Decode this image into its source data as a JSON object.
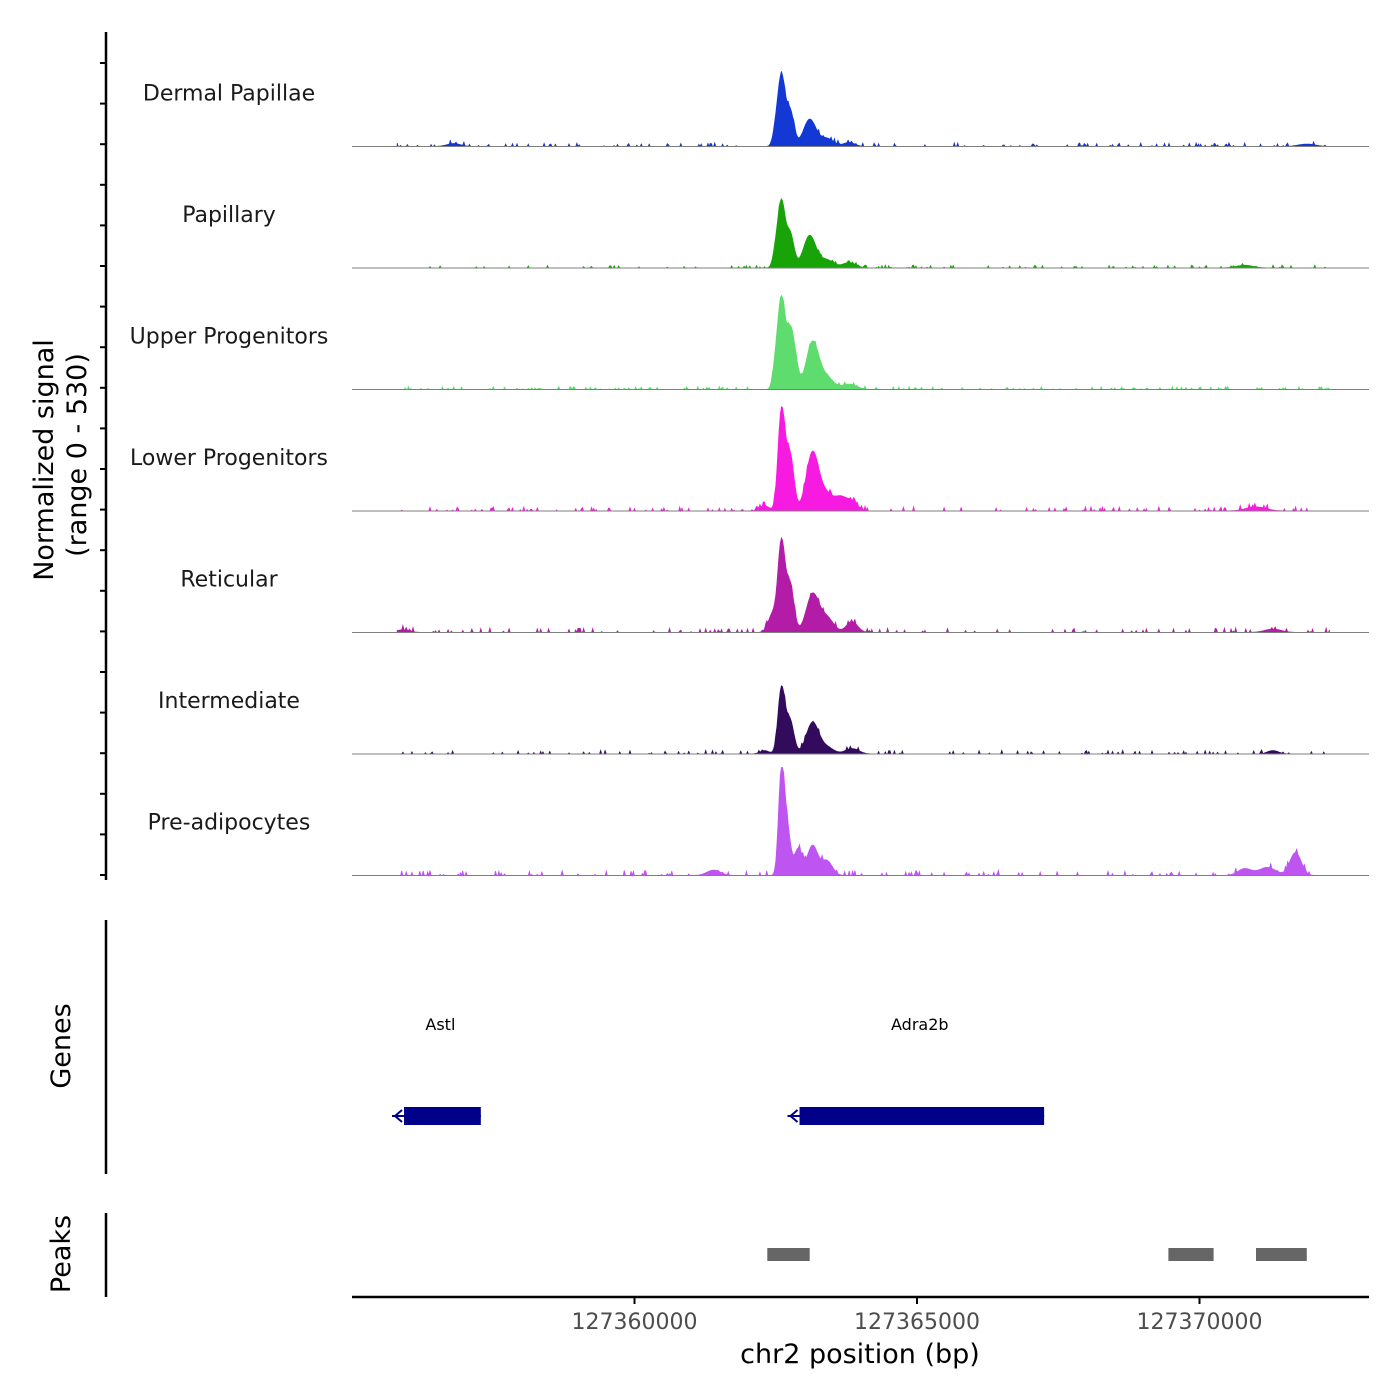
{
  "chart_data": {
    "type": "area",
    "title": "",
    "ylabel_line1": "Normalized signal",
    "ylabel_line2": "(range 0 - 530)",
    "xlabel": "chr2 position (bp)",
    "xlim": [
      127355000,
      127373000
    ],
    "ylim": [
      0,
      530
    ],
    "xticks": [
      {
        "value": 127360000,
        "label": "127360000"
      },
      {
        "value": 127365000,
        "label": "127365000"
      },
      {
        "value": 127370000,
        "label": "127370000"
      }
    ],
    "signal_range": [
      127355800,
      127372300
    ],
    "tracks": [
      {
        "name": "Dermal Papillae",
        "color": "#1338D4",
        "peaks": [
          [
            127362600,
            500,
            60
          ],
          [
            127362750,
            270,
            70
          ],
          [
            127363100,
            200,
            110
          ],
          [
            127362500,
            120,
            50
          ],
          [
            127363400,
            60,
            120
          ],
          [
            127363800,
            30,
            100
          ],
          [
            127356800,
            22,
            120
          ],
          [
            127371900,
            18,
            150
          ]
        ],
        "noise": 10
      },
      {
        "name": "Papillary",
        "color": "#18A308",
        "peaks": [
          [
            127362600,
            470,
            60
          ],
          [
            127362750,
            260,
            70
          ],
          [
            127363100,
            240,
            110
          ],
          [
            127362500,
            120,
            50
          ],
          [
            127363400,
            60,
            120
          ],
          [
            127363800,
            40,
            120
          ],
          [
            127370800,
            20,
            150
          ]
        ],
        "noise": 8
      },
      {
        "name": "Upper Progenitors",
        "color": "#5EDD6E",
        "peaks": [
          [
            127362600,
            630,
            60
          ],
          [
            127362750,
            420,
            70
          ],
          [
            127363150,
            350,
            110
          ],
          [
            127362850,
            130,
            60
          ],
          [
            127362500,
            180,
            50
          ],
          [
            127363400,
            90,
            120
          ],
          [
            127363800,
            40,
            130
          ]
        ],
        "noise": 8
      },
      {
        "name": "Lower Progenitors",
        "color": "#F71AE0",
        "peaks": [
          [
            127362600,
            730,
            60
          ],
          [
            127362750,
            420,
            70
          ],
          [
            127363150,
            430,
            110
          ],
          [
            127363400,
            120,
            120
          ],
          [
            127363650,
            90,
            100
          ],
          [
            127363850,
            70,
            100
          ],
          [
            127362300,
            40,
            80
          ],
          [
            127371000,
            30,
            180
          ]
        ],
        "noise": 12
      },
      {
        "name": "Reticular",
        "color": "#B31CA6",
        "peaks": [
          [
            127362600,
            640,
            60
          ],
          [
            127362750,
            360,
            70
          ],
          [
            127363150,
            280,
            110
          ],
          [
            127362450,
            140,
            80
          ],
          [
            127363400,
            110,
            120
          ],
          [
            127363850,
            80,
            100
          ],
          [
            127355900,
            20,
            120
          ],
          [
            127371300,
            25,
            150
          ]
        ],
        "noise": 12
      },
      {
        "name": "Intermediate",
        "color": "#330B5C",
        "peaks": [
          [
            127362600,
            480,
            60
          ],
          [
            127362750,
            250,
            70
          ],
          [
            127363150,
            230,
            110
          ],
          [
            127363400,
            50,
            120
          ],
          [
            127363850,
            40,
            120
          ],
          [
            127362300,
            25,
            80
          ],
          [
            127371300,
            25,
            100
          ]
        ],
        "noise": 10
      },
      {
        "name": "Pre-adipocytes",
        "color": "#BF55F0",
        "peaks": [
          [
            127362600,
            750,
            50
          ],
          [
            127362700,
            350,
            60
          ],
          [
            127362900,
            200,
            70
          ],
          [
            127363150,
            220,
            90
          ],
          [
            127363400,
            110,
            100
          ],
          [
            127361400,
            40,
            120
          ],
          [
            127371700,
            170,
            100
          ],
          [
            127371200,
            60,
            150
          ],
          [
            127370800,
            50,
            120
          ]
        ],
        "noise": 14
      }
    ],
    "genes_label": "Genes",
    "genes": [
      {
        "name": "Astl",
        "start": 127355850,
        "end": 127357280,
        "strand": "-"
      },
      {
        "name": "Adra2b",
        "start": 127362850,
        "end": 127367250,
        "strand": "-"
      }
    ],
    "peaks_label": "Peaks",
    "peak_regions": [
      {
        "start": 127362350,
        "end": 127363100
      },
      {
        "start": 127369450,
        "end": 127370250
      },
      {
        "start": 127371000,
        "end": 127371900
      }
    ],
    "colors": {
      "gene": "#00008B",
      "peak": "#666666",
      "axis": "#000000",
      "baseline": "#7f7f7f"
    }
  }
}
